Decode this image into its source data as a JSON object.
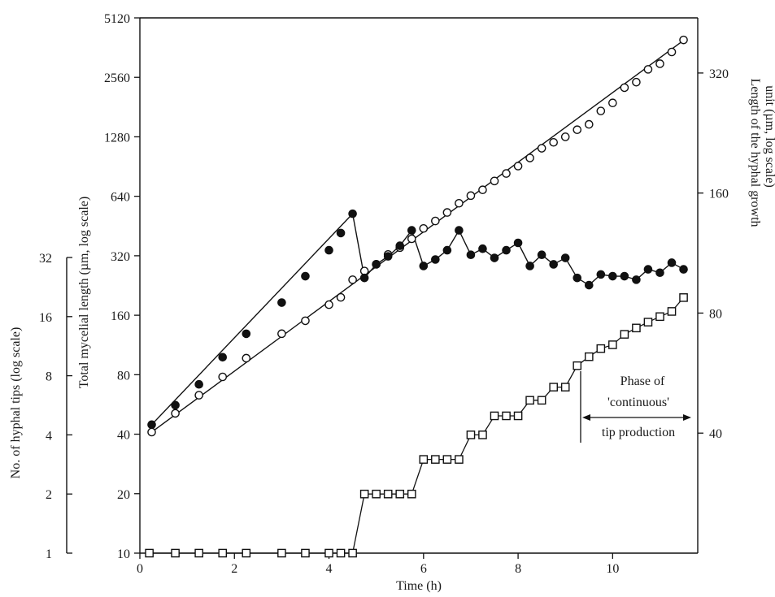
{
  "chart_data": {
    "type": "scatter",
    "x_axis": {
      "label": "Time (h)",
      "range": [
        0,
        11.8
      ],
      "ticks": [
        0,
        2,
        4,
        6,
        8,
        10
      ],
      "tick_labels": [
        "0",
        "2",
        "4",
        "6",
        "8",
        "10"
      ]
    },
    "y_left_outer": {
      "label": "No. of hyphal tips (log scale)",
      "scale": "log",
      "range": [
        1,
        32
      ],
      "ticks": [
        1,
        2,
        4,
        8,
        16,
        32
      ],
      "tick_labels": [
        "1",
        "2",
        "4",
        "8",
        "16",
        "32"
      ]
    },
    "y_left_inner": {
      "label": "Total mycelial length (µm, log scale)",
      "scale": "log",
      "range": [
        10,
        5120
      ],
      "ticks": [
        10,
        20,
        40,
        80,
        160,
        320,
        640,
        1280,
        2560,
        5120
      ],
      "tick_labels": [
        "10",
        "20",
        "40",
        "80",
        "160",
        "320",
        "640",
        "1280",
        "2560",
        "5120"
      ]
    },
    "y_right": {
      "label_line1": "Length of the hyphal growth",
      "label_line2": "unit (µm, log scale)",
      "scale": "log",
      "range": [
        20,
        440
      ],
      "ticks": [
        40,
        80,
        160,
        320
      ],
      "tick_labels": [
        "40",
        "80",
        "160",
        "320"
      ]
    },
    "series": [
      {
        "marker": "open-circle",
        "axis": "y_left_inner",
        "x": [
          0.25,
          0.75,
          1.25,
          1.75,
          2.25,
          3.0,
          3.5,
          4.0,
          4.25,
          4.5,
          4.75,
          5.0,
          5.25,
          5.5,
          5.75,
          6.0,
          6.25,
          6.5,
          6.75,
          7.0,
          7.25,
          7.5,
          7.75,
          8.0,
          8.25,
          8.5,
          8.75,
          9.0,
          9.25,
          9.5,
          9.75,
          10.0,
          10.25,
          10.5,
          10.75,
          11.0,
          11.25,
          11.5
        ],
        "y": [
          41,
          51,
          63,
          78,
          97,
          129,
          150,
          181,
          197,
          242,
          268,
          290,
          325,
          352,
          390,
          440,
          480,
          530,
          590,
          645,
          690,
          765,
          835,
          910,
          1000,
          1120,
          1200,
          1280,
          1390,
          1480,
          1730,
          1900,
          2270,
          2420,
          2810,
          3000,
          3440,
          3960
        ],
        "trend_line": {
          "x": [
            0.25,
            11.5
          ],
          "y": [
            41,
            3940
          ]
        }
      },
      {
        "marker": "filled-circle",
        "axis": "y_right",
        "x": [
          0.25,
          0.75,
          1.25,
          1.75,
          2.25,
          3.0,
          3.5,
          4.0,
          4.25,
          4.5,
          4.75,
          5.0,
          5.25,
          5.5,
          5.75,
          6.0,
          6.25,
          6.5,
          6.75,
          7.0,
          7.25,
          7.5,
          7.75,
          8.0,
          8.25,
          8.5,
          8.75,
          9.0,
          9.25,
          9.5,
          9.75,
          10.0,
          10.25,
          10.5,
          10.75,
          11.0,
          11.25,
          11.5
        ],
        "y": [
          42,
          47,
          53,
          62,
          71,
          85,
          99,
          115,
          127,
          142,
          98,
          106,
          111,
          118,
          129,
          105,
          109,
          115,
          129,
          112,
          116,
          110,
          115,
          120,
          105,
          112,
          106,
          110,
          98,
          94,
          100,
          99,
          99,
          97,
          103,
          101,
          107,
          103
        ],
        "segments": [
          {
            "x": [
              0.25,
              4.5
            ],
            "y": [
              42,
              142
            ]
          },
          {
            "x": [
              4.5,
              4.75
            ],
            "y": [
              142,
              98
            ]
          }
        ]
      },
      {
        "marker": "open-square",
        "axis": "y_left_outer",
        "x": [
          0.2,
          0.75,
          1.25,
          1.75,
          2.25,
          3.0,
          3.5,
          4.0,
          4.25,
          4.5,
          4.75,
          5.0,
          5.25,
          5.5,
          5.75,
          6.0,
          6.25,
          6.5,
          6.75,
          7.0,
          7.25,
          7.5,
          7.75,
          8.0,
          8.25,
          8.5,
          8.75,
          9.0,
          9.25,
          9.5,
          9.75,
          10.0,
          10.25,
          10.5,
          10.75,
          11.0,
          11.25,
          11.5
        ],
        "y": [
          1,
          1,
          1,
          1,
          1,
          1,
          1,
          1,
          1,
          1,
          2,
          2,
          2,
          2,
          2,
          3,
          3,
          3,
          3,
          4,
          4,
          5,
          5,
          5,
          6,
          6,
          7,
          7,
          9,
          10,
          11,
          11.5,
          13,
          14,
          15,
          16,
          17,
          20
        ],
        "staircase": true,
        "continuous_from_x": 9.25
      }
    ],
    "annotations": {
      "phase_line1": "Phase of",
      "phase_line2": "'continuous'",
      "phase_line3": "tip production",
      "phase_start_x": 9.25,
      "phase_end_x": 11.75
    }
  }
}
